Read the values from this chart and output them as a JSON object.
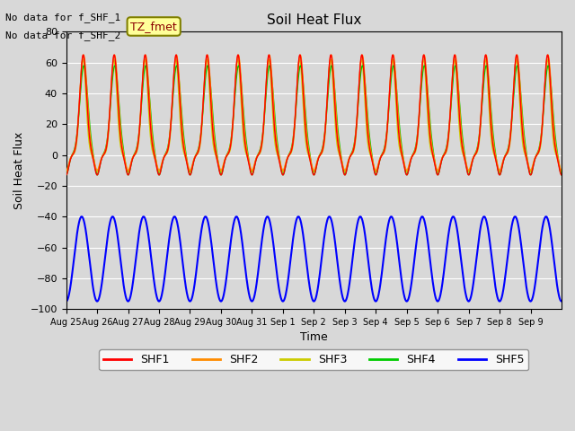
{
  "title": "Soil Heat Flux",
  "xlabel": "Time",
  "ylabel": "Soil Heat Flux",
  "ylim": [
    -100,
    80
  ],
  "yticks": [
    -100,
    -80,
    -60,
    -40,
    -20,
    0,
    20,
    40,
    60,
    80
  ],
  "xtick_labels": [
    "Aug 25",
    "Aug 26",
    "Aug 27",
    "Aug 28",
    "Aug 29",
    "Aug 30",
    "Aug 31",
    "Sep 1",
    "Sep 2",
    "Sep 3",
    "Sep 4",
    "Sep 5",
    "Sep 6",
    "Sep 7",
    "Sep 8",
    "Sep 9"
  ],
  "n_days": 16,
  "annotation1": "No data for f_SHF_1",
  "annotation2": "No data for f_SHF_2",
  "tz_label": "TZ_fmet",
  "series_colors": {
    "SHF1": "#ff0000",
    "SHF2": "#ff8c00",
    "SHF3": "#cccc00",
    "SHF4": "#00cc00",
    "SHF5": "#0000ff"
  },
  "background_color": "#d8d8d8",
  "plot_bg_color": "#d8d8d8"
}
